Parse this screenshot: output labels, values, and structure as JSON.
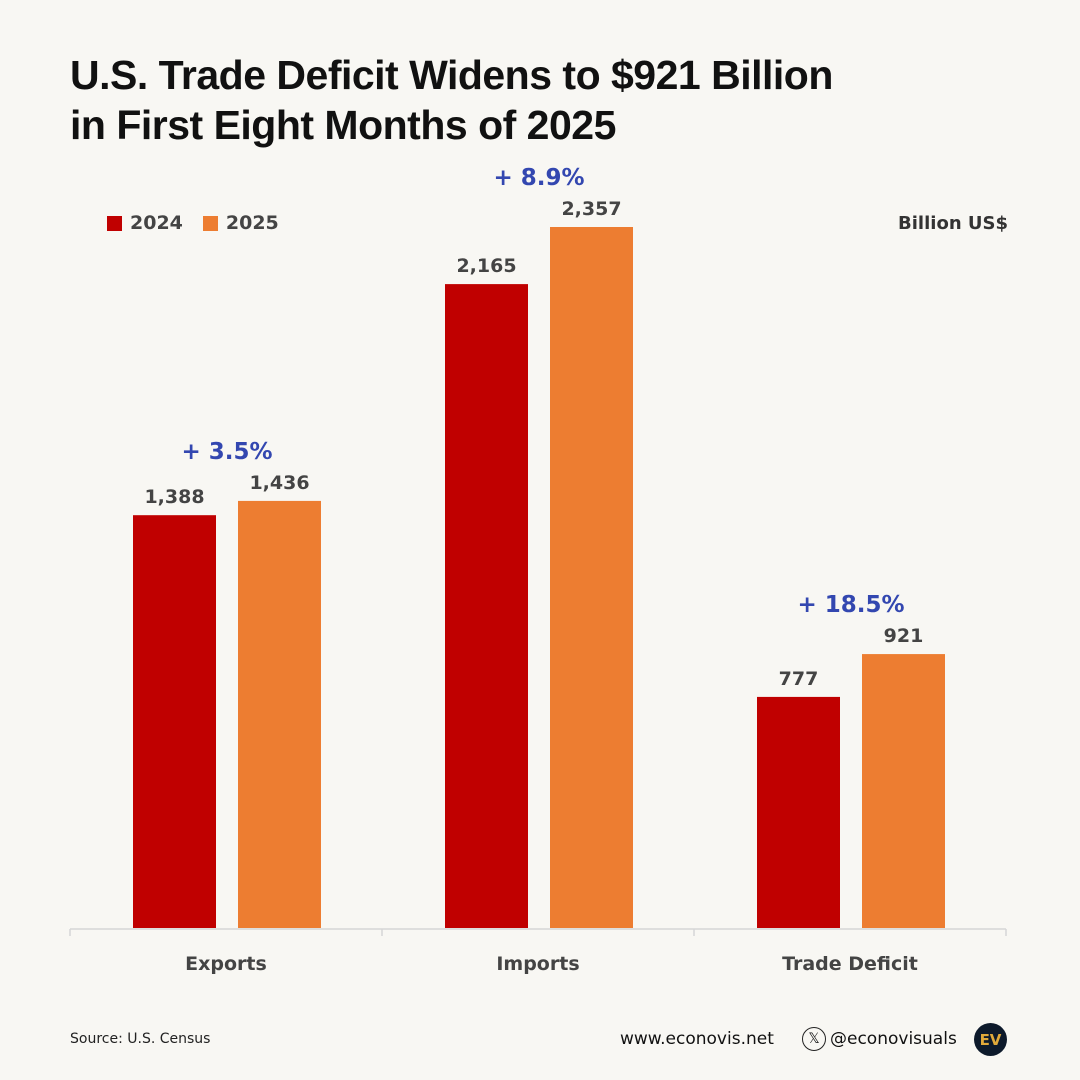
{
  "title_line1": "U.S. Trade Deficit Widens to $921 Billion",
  "title_line2": "in First Eight Months of 2025",
  "unit": "Billion US$",
  "colors": {
    "2024": "#c00000",
    "2025": "#ed7d31",
    "change": "#3347b0"
  },
  "chart_data": {
    "type": "bar",
    "categories": [
      "Exports",
      "Imports",
      "Trade Deficit"
    ],
    "series": [
      {
        "name": "2024",
        "values": [
          1388,
          2165,
          777
        ],
        "labels": [
          "1,388",
          "2,165",
          "777"
        ]
      },
      {
        "name": "2025",
        "values": [
          1436,
          2357,
          921
        ],
        "labels": [
          "1,436",
          "2,357",
          "921"
        ]
      }
    ],
    "annotations": [
      "+ 3.5%",
      "+ 8.9%",
      "+ 18.5%"
    ],
    "ylim": [
      0,
      2357
    ],
    "grid": false,
    "legend": "top-left"
  },
  "footer": {
    "source": "Source: U.S. Census",
    "website": "www.econovis.net",
    "handle": "@econovisuals",
    "logo": "EV"
  }
}
